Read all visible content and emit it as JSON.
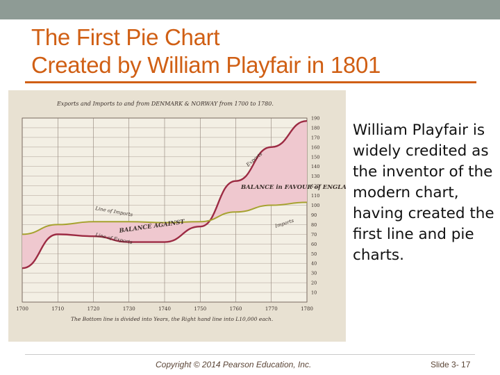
{
  "slide": {
    "title_line1": "The First Pie Chart",
    "title_line2": "Created by William Playfair in 1801",
    "body_text": "William Playfair is widely credited as the inventor of the modern chart, having created the first line and pie charts.",
    "copyright": "Copyright © 2014 Pearson Education, Inc.",
    "slide_number": "Slide 3- 17",
    "colors": {
      "title": "#d05f14",
      "topbar": "#8e9b95",
      "imports_line": "#a6a22f",
      "exports_line": "#9c2b43",
      "balance_fill": "#e8b7bf"
    }
  },
  "chart_data": {
    "type": "line",
    "title": "Exports and Imports to and from DENMARK & NORWAY from 1700 to 1780.",
    "footnote": "The Bottom line is divided into Years, the Right hand line into L10,000 each.",
    "x": [
      1700,
      1710,
      1720,
      1730,
      1740,
      1750,
      1760,
      1770,
      1780
    ],
    "x_tick_labels": [
      "1700",
      "1710",
      "1720",
      "1730",
      "1740",
      "1750",
      "1760",
      "1770",
      "1780"
    ],
    "y_tick_labels": [
      "10",
      "20",
      "30",
      "40",
      "50",
      "60",
      "70",
      "80",
      "90",
      "100",
      "110",
      "120",
      "130",
      "140",
      "150",
      "160",
      "170",
      "180",
      "190"
    ],
    "ylim": [
      0,
      190
    ],
    "grid": true,
    "series": [
      {
        "name": "Exports",
        "values": [
          35,
          70,
          68,
          62,
          62,
          78,
          125,
          160,
          187
        ]
      },
      {
        "name": "Imports",
        "values": [
          70,
          80,
          83,
          83,
          82,
          83,
          93,
          100,
          103
        ]
      }
    ],
    "annotations": {
      "balance_for": "BALANCE in FAVOUR of ENGLAND.",
      "balance_against": "BALANCE AGAINST",
      "line_imports": "Line of Imports",
      "line_exports": "Line of Exports",
      "exports_label": "Exports",
      "imports_label": "Imports"
    }
  }
}
